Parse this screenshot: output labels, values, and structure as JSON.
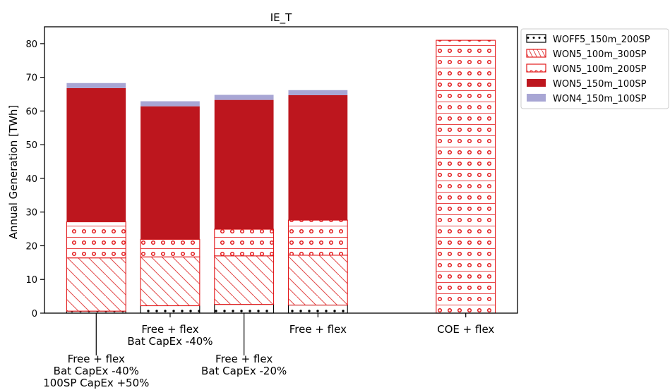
{
  "chart_data": {
    "type": "bar",
    "stacked": true,
    "title": "IE_T",
    "xlabel": "",
    "ylabel": "Annual Generation [TWh]",
    "ylim": [
      0,
      85
    ],
    "yticks": [
      0,
      10,
      20,
      30,
      40,
      50,
      60,
      70,
      80
    ],
    "grid": false,
    "legend_position": "outside-top-right",
    "categories": [
      "Free + flex\nBat CapEx -40%\n100SP CapEx +50%",
      "Free + flex\nBat CapEx -40%",
      "Free + flex\nBat CapEx -20%",
      "Free + flex",
      "COE + flex"
    ],
    "category_x": [
      1,
      2,
      3,
      4,
      6
    ],
    "category_label_lines": [
      [
        "Free + flex",
        "Bat CapEx -40%",
        "100SP CapEx +50%"
      ],
      [
        "Free + flex",
        "Bat CapEx -40%"
      ],
      [
        "Free + flex",
        "Bat CapEx -20%"
      ],
      [
        "Free + flex"
      ],
      [
        "COE + flex"
      ]
    ],
    "category_label_row": [
      "far",
      "near",
      "far",
      "near",
      "near"
    ],
    "series": [
      {
        "name": "WOFF5_150m_200SP",
        "values": [
          0.6,
          2.2,
          2.6,
          2.4,
          0
        ],
        "color": "#000000",
        "fill": "#ffffff",
        "pattern": "dots"
      },
      {
        "name": "WON5_100m_300SP",
        "values": [
          15.8,
          14.5,
          14.4,
          14.8,
          0
        ],
        "color": "#e31a1c",
        "fill": "#ffffff",
        "pattern": "hatch"
      },
      {
        "name": "WON5_100m_200SP",
        "values": [
          10.7,
          5.2,
          7.9,
          10.4,
          81.0
        ],
        "color": "#e31a1c",
        "fill": "#ffffff",
        "pattern": "rings"
      },
      {
        "name": "WON5_150m_100SP",
        "values": [
          39.7,
          39.5,
          38.4,
          37.1,
          0
        ],
        "color": "#bd161e",
        "fill": "#bd161e",
        "pattern": "solid"
      },
      {
        "name": "WON4_150m_100SP",
        "values": [
          1.5,
          1.5,
          1.5,
          1.5,
          0
        ],
        "color": "#a8a6d4",
        "fill": "#a8a6d4",
        "pattern": "solid"
      }
    ]
  }
}
